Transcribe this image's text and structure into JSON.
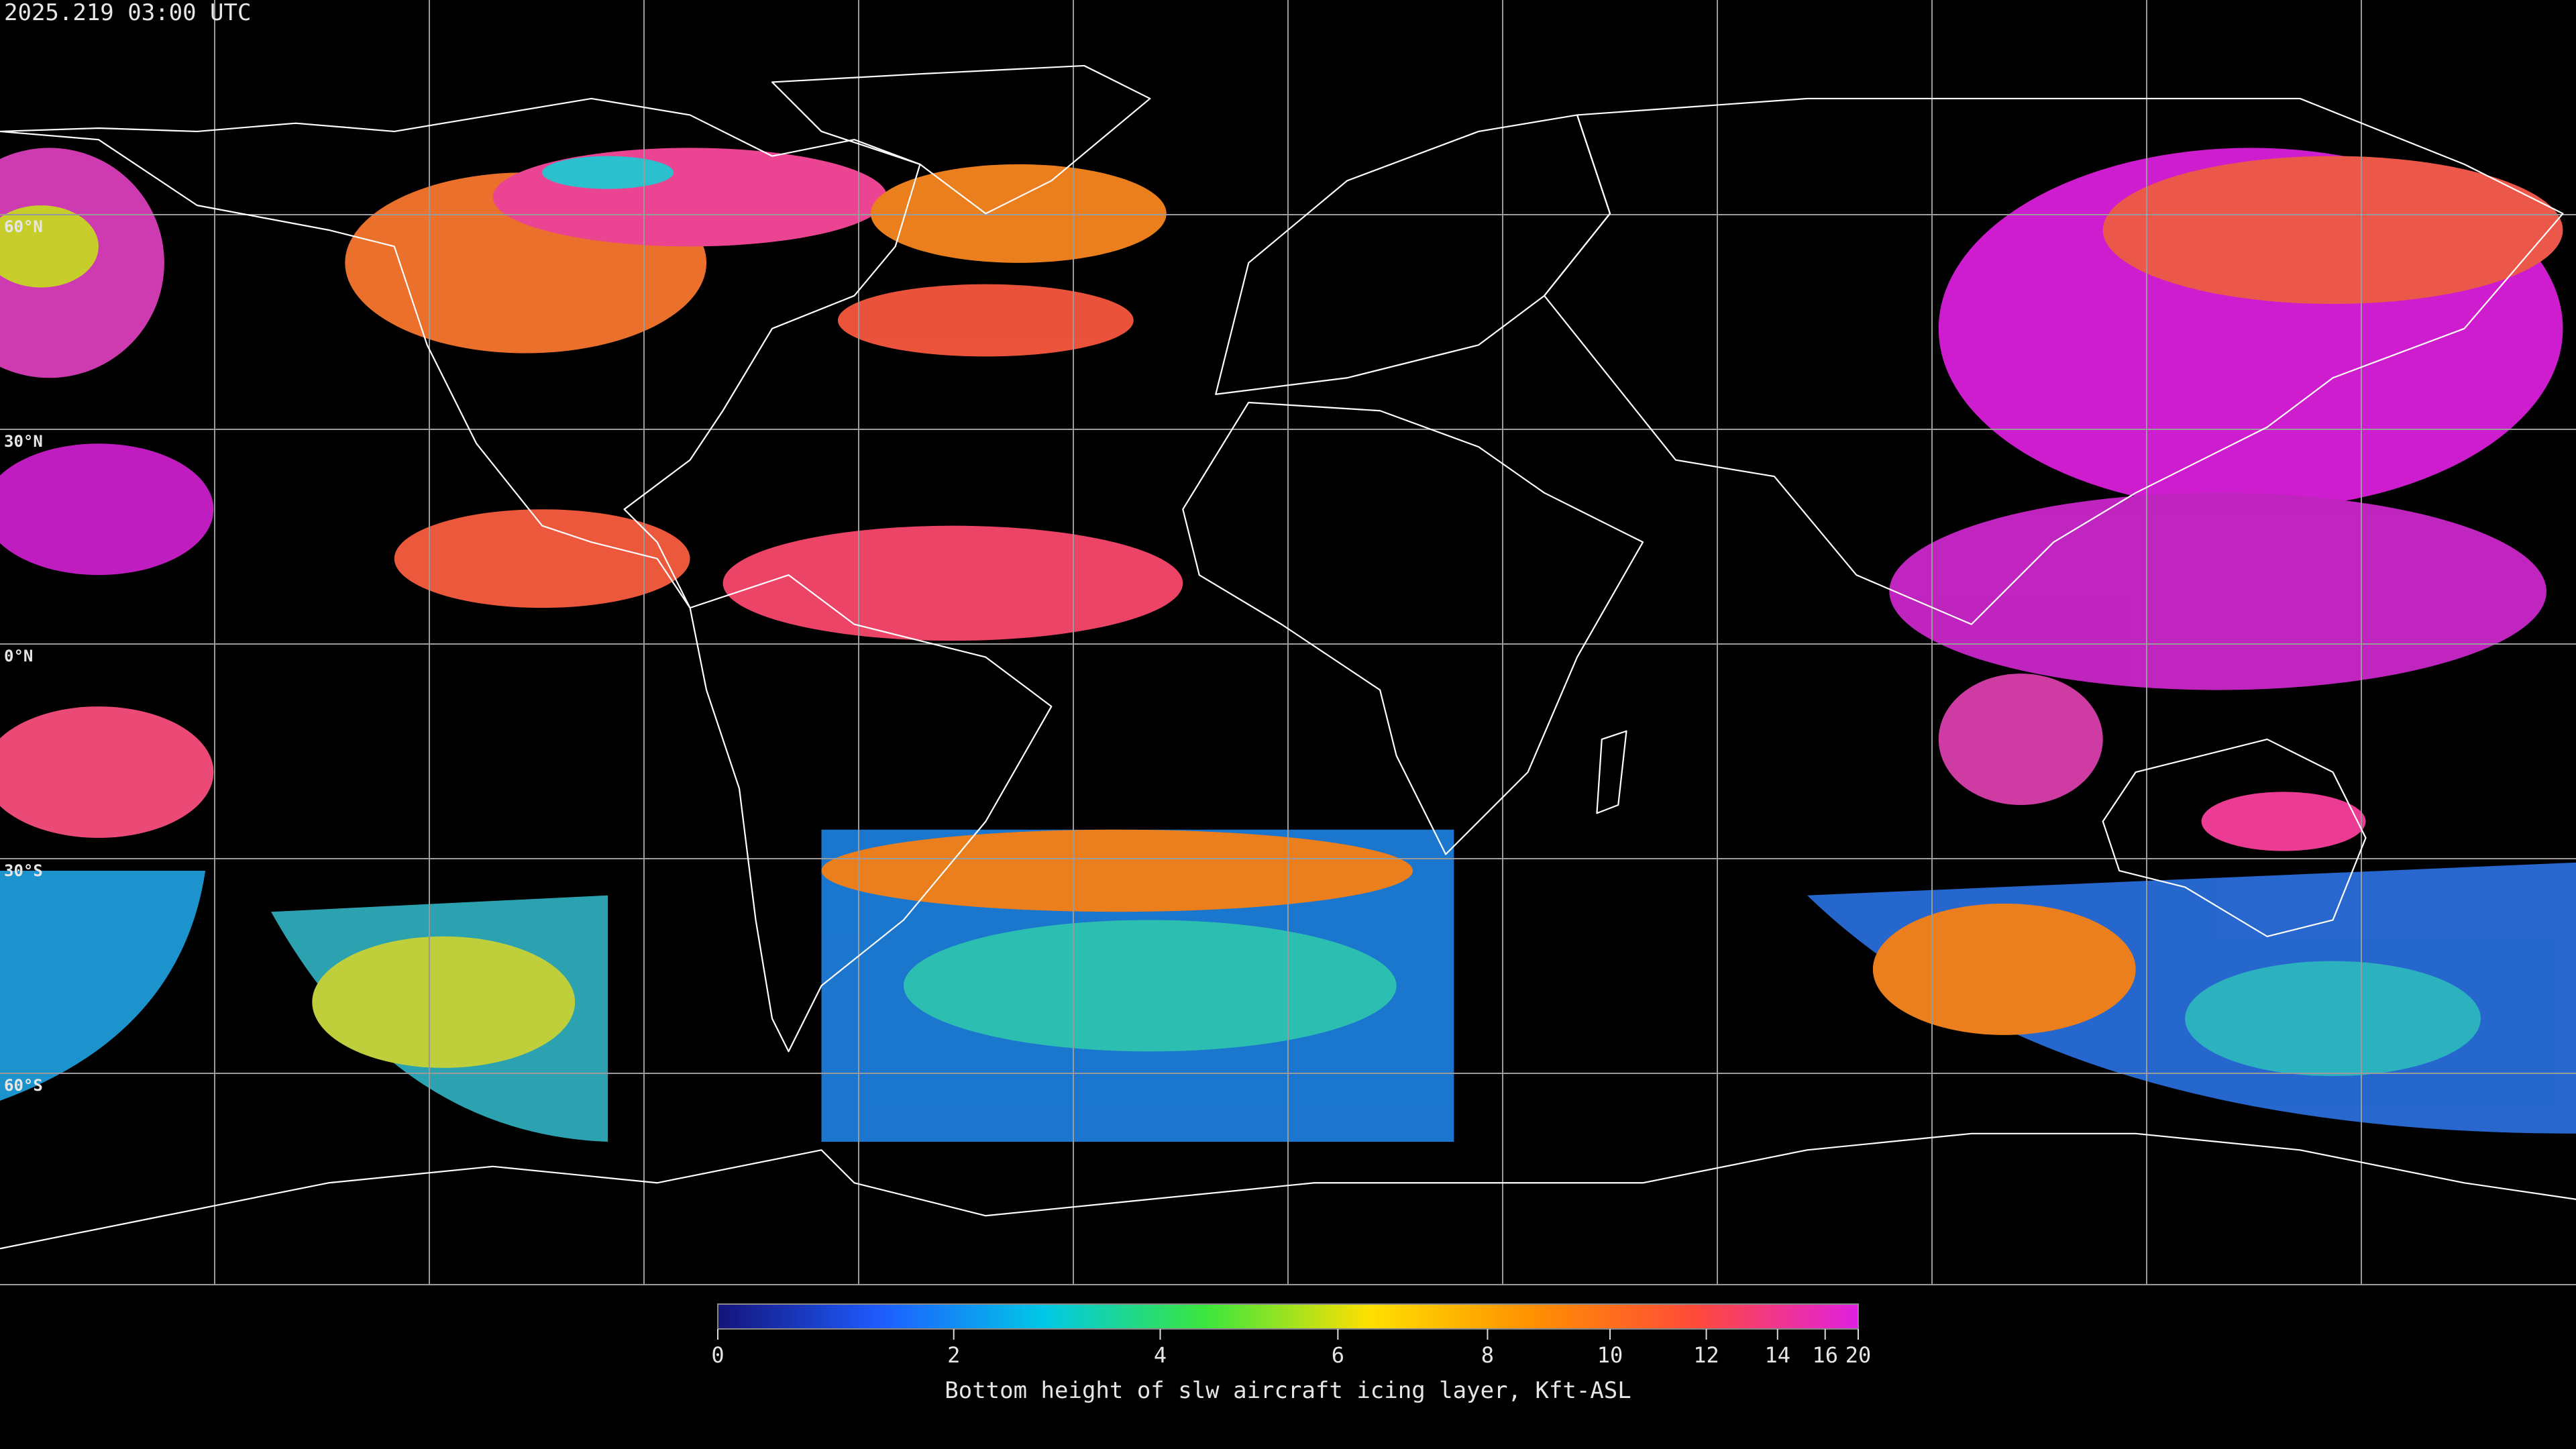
{
  "header": {
    "timestamp": "2025.219 03:00 UTC"
  },
  "map": {
    "lat_labels": [
      "60°N",
      "30°N",
      "0°N",
      "30°S",
      "60°S"
    ]
  },
  "colorbar": {
    "label": "Bottom height of slw aircraft icing layer, Kft-ASL",
    "range": [
      0,
      20
    ],
    "ticks": [
      0,
      2,
      4,
      6,
      8,
      10,
      12,
      14,
      16,
      20
    ],
    "colors": [
      "#14147a",
      "#1e5cff",
      "#00c8e6",
      "#3ce63c",
      "#ffe000",
      "#ff9000",
      "#ff4a3a",
      "#e020e0"
    ]
  }
}
